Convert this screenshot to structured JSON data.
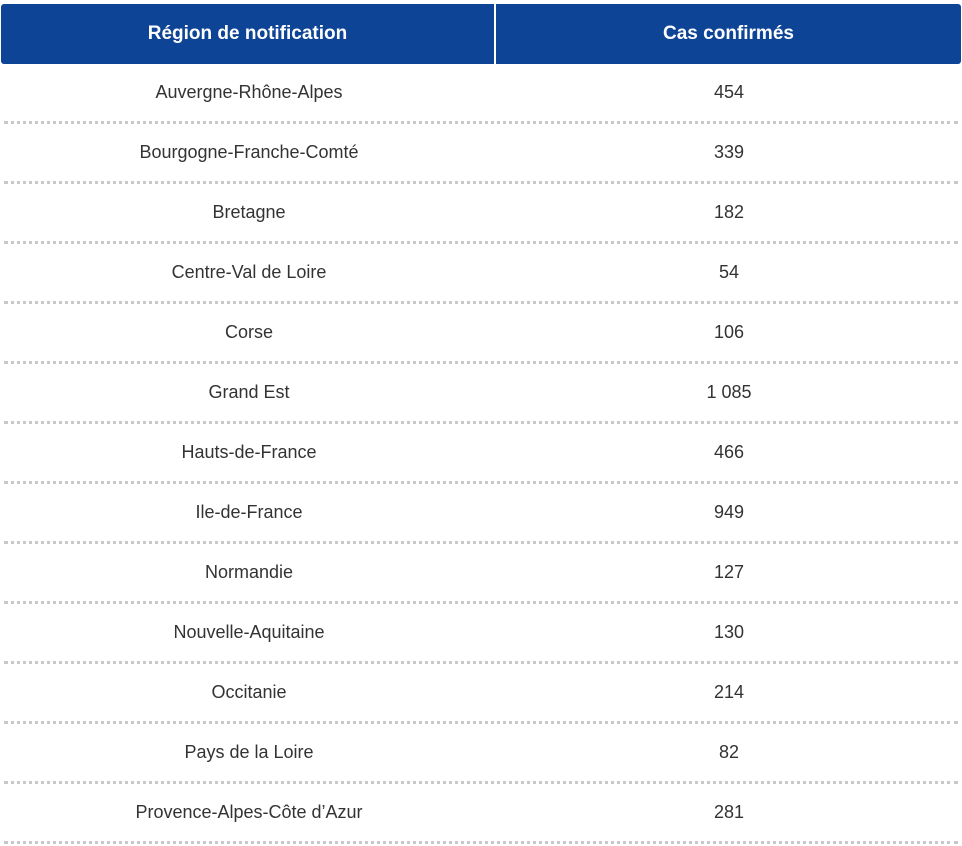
{
  "table": {
    "headers": {
      "region": "Région de notification",
      "cases": "Cas confirmés"
    },
    "rows": [
      {
        "region": "Auvergne-Rhône-Alpes",
        "cases": "454"
      },
      {
        "region": "Bourgogne-Franche-Comté",
        "cases": "339"
      },
      {
        "region": "Bretagne",
        "cases": "182"
      },
      {
        "region": "Centre-Val de Loire",
        "cases": "54"
      },
      {
        "region": "Corse",
        "cases": "106"
      },
      {
        "region": "Grand Est",
        "cases": "1 085"
      },
      {
        "region": "Hauts-de-France",
        "cases": "466"
      },
      {
        "region": "Ile-de-France",
        "cases": "949"
      },
      {
        "region": "Normandie",
        "cases": "127"
      },
      {
        "region": "Nouvelle-Aquitaine",
        "cases": "130"
      },
      {
        "region": "Occitanie",
        "cases": "214"
      },
      {
        "region": "Pays de la Loire",
        "cases": "82"
      },
      {
        "region": "Provence-Alpes-Côte d’Azur",
        "cases": "281"
      }
    ]
  },
  "colors": {
    "header_background": "#0d4495",
    "header_text": "#ffffff",
    "body_text": "#333333",
    "row_separator": "#c8c8c8"
  }
}
